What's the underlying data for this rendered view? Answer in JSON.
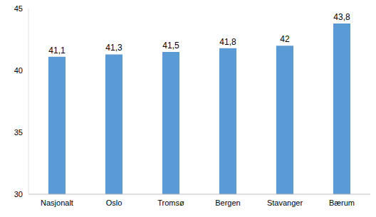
{
  "chart_data": {
    "type": "bar",
    "categories": [
      "Nasjonalt",
      "Oslo",
      "Tromsø",
      "Bergen",
      "Stavanger",
      "Bærum"
    ],
    "values": [
      41.1,
      41.3,
      41.5,
      41.8,
      42,
      43.8
    ],
    "value_labels": [
      "41,1",
      "41,3",
      "41,5",
      "41,8",
      "42",
      "43,8"
    ],
    "color": "#5b9bd5",
    "ylim": [
      30,
      45
    ],
    "yticks": [
      30,
      35,
      40,
      45
    ],
    "grid": false,
    "data_labels": true
  }
}
